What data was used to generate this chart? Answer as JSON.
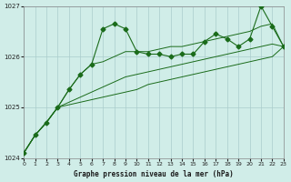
{
  "title": "Graphe pression niveau de la mer (hPa)",
  "bg_color": "#d0ede8",
  "grid_color": "#aacccc",
  "line_color": "#1a6b1a",
  "xlim": [
    0,
    23
  ],
  "ylim": [
    1024,
    1027
  ],
  "yticks": [
    1024,
    1025,
    1026,
    1027
  ],
  "xticks": [
    0,
    1,
    2,
    3,
    4,
    5,
    6,
    7,
    8,
    9,
    10,
    11,
    12,
    13,
    14,
    15,
    16,
    17,
    18,
    19,
    20,
    21,
    22,
    23
  ],
  "x": [
    0,
    1,
    2,
    3,
    4,
    5,
    6,
    7,
    8,
    9,
    10,
    11,
    12,
    13,
    14,
    15,
    16,
    17,
    18,
    19,
    20,
    21,
    22,
    23
  ],
  "y_main": [
    1024.1,
    1024.45,
    1024.7,
    1025.0,
    1025.35,
    1025.65,
    1025.85,
    1026.55,
    1026.65,
    1026.55,
    1026.1,
    1026.05,
    1026.05,
    1026.0,
    1026.05,
    1026.05,
    1026.3,
    1026.45,
    1026.35,
    1026.2,
    1026.35,
    1027.0,
    1026.6,
    1026.2
  ],
  "y_line2": [
    1024.1,
    1024.45,
    1024.7,
    1025.0,
    1025.35,
    1025.65,
    1025.85,
    1025.9,
    1026.0,
    1026.1,
    1026.1,
    1026.1,
    1026.15,
    1026.2,
    1026.2,
    1026.25,
    1026.3,
    1026.35,
    1026.4,
    1026.45,
    1026.5,
    1026.6,
    1026.65,
    1026.2
  ],
  "y_line3": [
    1024.1,
    1024.45,
    1024.7,
    1025.0,
    1025.1,
    1025.2,
    1025.3,
    1025.4,
    1025.5,
    1025.6,
    1025.65,
    1025.7,
    1025.75,
    1025.8,
    1025.85,
    1025.9,
    1025.95,
    1026.0,
    1026.05,
    1026.1,
    1026.15,
    1026.2,
    1026.25,
    1026.2
  ],
  "y_line4": [
    1024.1,
    1024.45,
    1024.7,
    1025.0,
    1025.05,
    1025.1,
    1025.15,
    1025.2,
    1025.25,
    1025.3,
    1025.35,
    1025.45,
    1025.5,
    1025.55,
    1025.6,
    1025.65,
    1025.7,
    1025.75,
    1025.8,
    1025.85,
    1025.9,
    1025.95,
    1026.0,
    1026.2
  ]
}
